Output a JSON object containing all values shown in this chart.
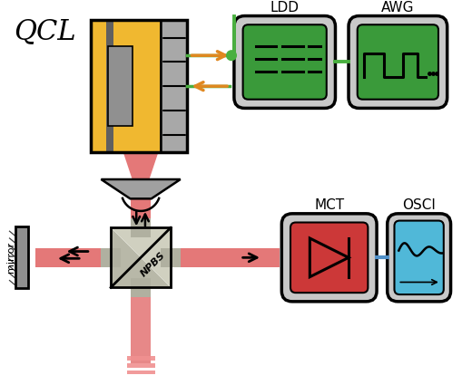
{
  "bg_color": "#ffffff",
  "qcl_label": "QCL",
  "ldd_label": "LDD",
  "awg_label": "AWG",
  "mct_label": "MCT",
  "osci_label": "OSCI",
  "npbs_label": "NPBS",
  "mirror_label": "mirror",
  "colors": {
    "gray_box_light": "#d0d0d0",
    "gray_box_gradient": "#b0b0b0",
    "green_screen": "#3a9a3a",
    "green_line": "#4ab040",
    "red_beam": "#e06060",
    "red_beam_light": "#f09090",
    "orange_arrow": "#e08820",
    "yellow_body": "#f0b830",
    "yellow_body2": "#e8a820",
    "black": "#000000",
    "cyan_screen": "#50b8d8",
    "red_screen": "#cc3838",
    "blue_line": "#5090c8",
    "white": "#ffffff",
    "lens_gray": "#a0a0a0",
    "npbs_gray_light": "#c8c8b8",
    "npbs_gray_dark": "#909080",
    "qcl_gray": "#a8a8a8",
    "qcl_gray2": "#909090"
  }
}
